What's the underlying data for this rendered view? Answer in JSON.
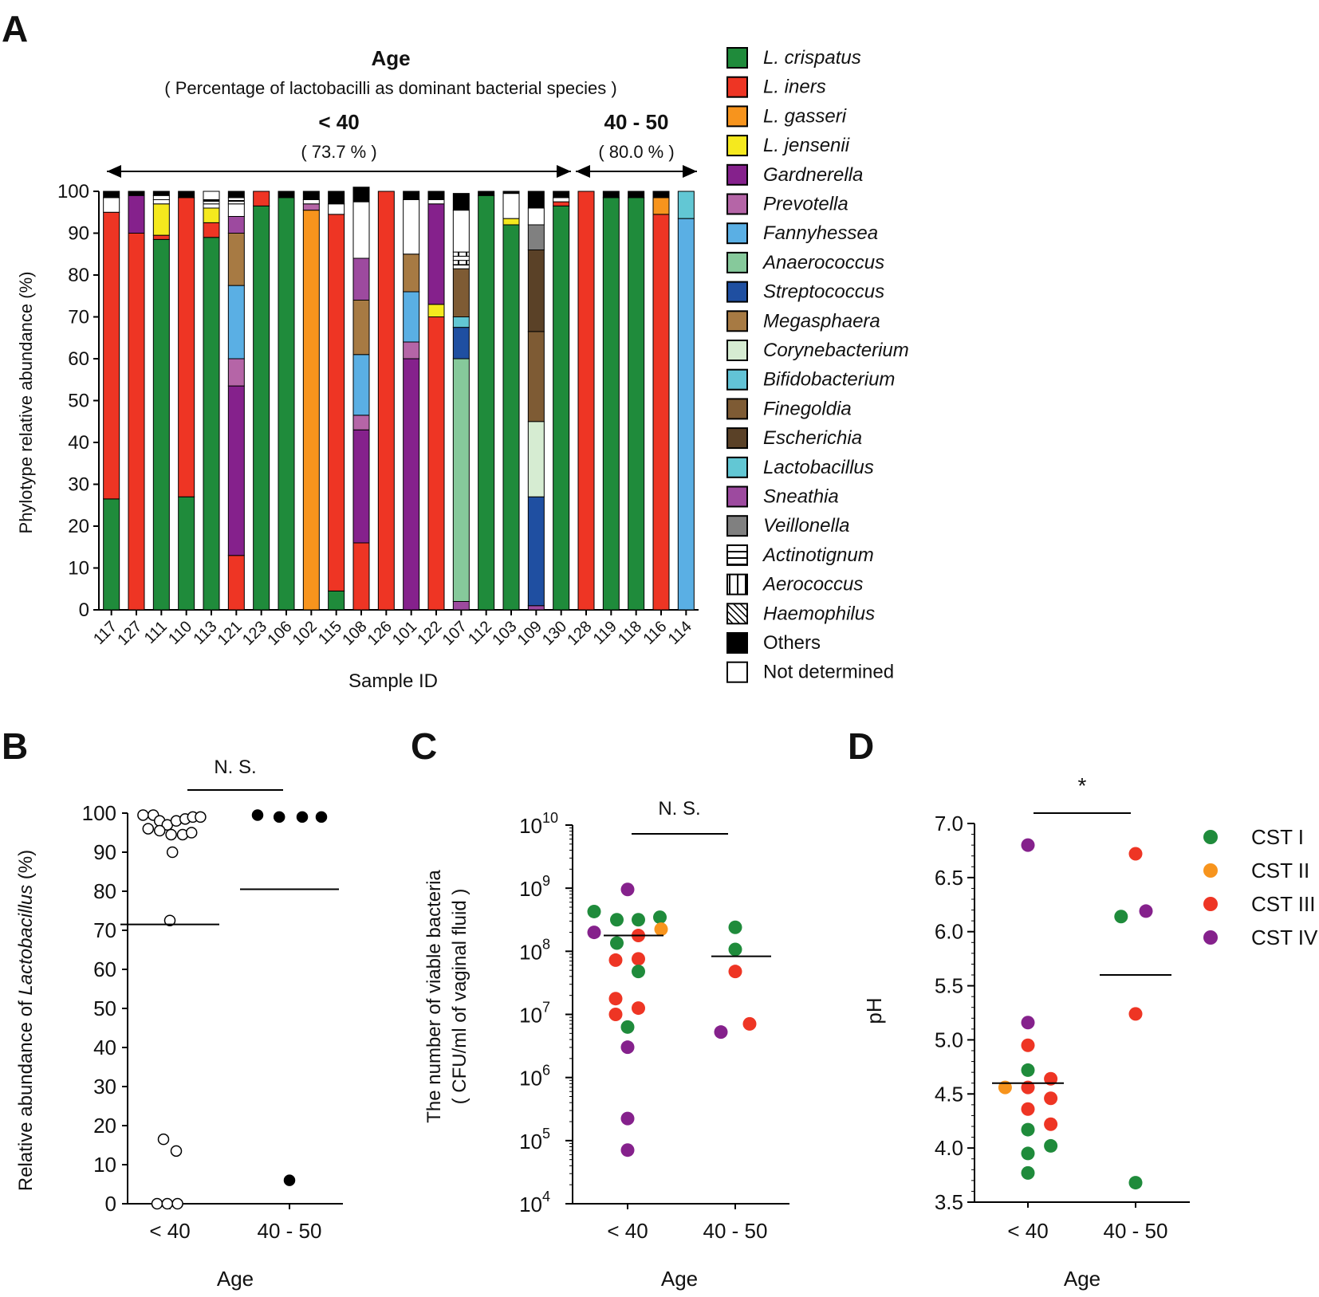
{
  "colors": {
    "L. crispatus": "#1f8b3b",
    "L. iners": "#ee3524",
    "L. gasseri": "#f7941d",
    "L. jensenii": "#f5e91e",
    "Gardnerella": "#85218c",
    "Prevotella": "#b565a7",
    "Fannyhessea": "#5aafe4",
    "Anaerococcus": "#86c99b",
    "Streptococcus": "#1f4fa1",
    "Megasphaera": "#a77a43",
    "Corynebacterium": "#d6ecd2",
    "Bifidobacterium": "#62c3d6",
    "Finegoldia": "#7e5b34",
    "Escherichia": "#5a4127",
    "Lactobacillus": "#62c7d4",
    "Sneathia": "#9d4a9f",
    "Veillonella": "#808080",
    "Actinotignum": "#ffffff",
    "Aerococcus": "#ffffff",
    "Haemophilus": "#ffffff",
    "Others": "#000000",
    "Not determined": "#ffffff",
    "CST I": "#1f8b3b",
    "CST II": "#f7941d",
    "CST III": "#ee3524",
    "CST IV": "#85218c"
  },
  "panels": {
    "A": {
      "label": "A",
      "title": "Age",
      "subtitle": "( Percentage of lactobacilli as dominant bacterial species )",
      "group1_label": "< 40",
      "group1_pct": "( 73.7 % )",
      "group2_label": "40 - 50",
      "group2_pct": "( 80.0 % )"
    },
    "B": {
      "label": "B",
      "sig": "N. S."
    },
    "C": {
      "label": "C",
      "sig": "N. S."
    },
    "D": {
      "label": "D",
      "sig": "*"
    }
  },
  "chart_data": [
    {
      "id": "A",
      "type": "bar",
      "stacked": true,
      "title": "Age",
      "xlabel": "Sample ID",
      "ylabel": "Phylotype relative abundance (%)",
      "ylim": [
        0,
        100
      ],
      "yticks": [
        0,
        10,
        20,
        30,
        40,
        50,
        60,
        70,
        80,
        90,
        100
      ],
      "categories": [
        "117",
        "127",
        "111",
        "110",
        "113",
        "121",
        "123",
        "106",
        "102",
        "115",
        "108",
        "126",
        "101",
        "122",
        "107",
        "112",
        "103",
        "109",
        "130",
        "128",
        "119",
        "118",
        "116",
        "114"
      ],
      "legend": [
        "L. crispatus",
        "L. iners",
        "L. gasseri",
        "L. jensenii",
        "Gardnerella",
        "Prevotella",
        "Fannyhessea",
        "Anaerococcus",
        "Streptococcus",
        "Megasphaera",
        "Corynebacterium",
        "Bifidobacterium",
        "Finegoldia",
        "Escherichia",
        "Lactobacillus",
        "Sneathia",
        "Veillonella",
        "Actinotignum",
        "Aerococcus",
        "Haemophilus",
        "Others",
        "Not determined"
      ],
      "legend_italic": [
        true,
        true,
        true,
        true,
        true,
        true,
        true,
        true,
        true,
        true,
        true,
        true,
        true,
        true,
        true,
        true,
        true,
        true,
        true,
        true,
        false,
        false
      ],
      "stacks": [
        [
          [
            "L. crispatus",
            26.5
          ],
          [
            "L. iners",
            68.5
          ],
          [
            "Not determined",
            3.5
          ],
          [
            "Others",
            1.5
          ]
        ],
        [
          [
            "L. iners",
            90
          ],
          [
            "Gardnerella",
            9
          ],
          [
            "Others",
            1
          ]
        ],
        [
          [
            "L. crispatus",
            88.5
          ],
          [
            "L. iners",
            1
          ],
          [
            "L. jensenii",
            7.5
          ],
          [
            "Not determined",
            1
          ],
          [
            "Actinotignum",
            1
          ],
          [
            "Others",
            1
          ]
        ],
        [
          [
            "L. crispatus",
            27
          ],
          [
            "L. iners",
            71.5
          ],
          [
            "Others",
            1.5
          ]
        ],
        [
          [
            "L. crispatus",
            89
          ],
          [
            "L. iners",
            3.5
          ],
          [
            "L. jensenii",
            3.5
          ],
          [
            "Not determined",
            1
          ],
          [
            "Actinotignum",
            1
          ],
          [
            "Not determined",
            2
          ]
        ],
        [
          [
            "L. iners",
            13
          ],
          [
            "Gardnerella",
            40.5
          ],
          [
            "Prevotella",
            6.5
          ],
          [
            "Fannyhessea",
            17.5
          ],
          [
            "Megasphaera",
            12.5
          ],
          [
            "Sneathia",
            4
          ],
          [
            "Not determined",
            3
          ],
          [
            "Actinotignum",
            1.5
          ],
          [
            "Others",
            1.5
          ]
        ],
        [
          [
            "L. crispatus",
            96.5
          ],
          [
            "L. iners",
            3.5
          ]
        ],
        [
          [
            "L. crispatus",
            98.5
          ],
          [
            "Others",
            1.5
          ]
        ],
        [
          [
            "L. gasseri",
            95.5
          ],
          [
            "Prevotella",
            1.5
          ],
          [
            "Not determined",
            1
          ],
          [
            "Others",
            2
          ]
        ],
        [
          [
            "L. crispatus",
            4.5
          ],
          [
            "L. iners",
            90
          ],
          [
            "Not determined",
            2.5
          ],
          [
            "Others",
            3
          ]
        ],
        [
          [
            "L. iners",
            16
          ],
          [
            "Gardnerella",
            27
          ],
          [
            "Prevotella",
            3.5
          ],
          [
            "Fannyhessea",
            14.5
          ],
          [
            "Megasphaera",
            13
          ],
          [
            "Sneathia",
            10
          ],
          [
            "Not determined",
            13.5
          ],
          [
            "Others",
            3.5
          ]
        ],
        [
          [
            "L. iners",
            100
          ]
        ],
        [
          [
            "Gardnerella",
            60
          ],
          [
            "Prevotella",
            4
          ],
          [
            "Fannyhessea",
            12
          ],
          [
            "Megasphaera",
            9
          ],
          [
            "Not determined",
            13
          ],
          [
            "Others",
            2
          ]
        ],
        [
          [
            "L. iners",
            70
          ],
          [
            "L. jensenii",
            3
          ],
          [
            "Gardnerella",
            24
          ],
          [
            "Not determined",
            1
          ],
          [
            "Others",
            2
          ]
        ],
        [
          [
            "Sneathia",
            2
          ],
          [
            "Anaerococcus",
            58
          ],
          [
            "Streptococcus",
            7.5
          ],
          [
            "Lactobacillus",
            2.5
          ],
          [
            "Finegoldia",
            11.5
          ],
          [
            "Actinotignum",
            1
          ],
          [
            "Aerococcus",
            1
          ],
          [
            "Not determined",
            1
          ],
          [
            "Aerococcus",
            1
          ],
          [
            "Not determined",
            10
          ],
          [
            "Others",
            4
          ]
        ],
        [
          [
            "L. crispatus",
            99
          ],
          [
            "Others",
            1
          ]
        ],
        [
          [
            "L. crispatus",
            92
          ],
          [
            "L. jensenii",
            1.5
          ],
          [
            "Not determined",
            6
          ],
          [
            "Others",
            0.5
          ]
        ],
        [
          [
            "Sneathia",
            1
          ],
          [
            "Streptococcus",
            26
          ],
          [
            "Corynebacterium",
            18
          ],
          [
            "Finegoldia",
            21.5
          ],
          [
            "Escherichia",
            19.5
          ],
          [
            "Veillonella",
            6
          ],
          [
            "Not determined",
            4
          ],
          [
            "Others",
            4
          ]
        ],
        [
          [
            "L. crispatus",
            96.5
          ],
          [
            "L. iners",
            1
          ],
          [
            "Not determined",
            1
          ],
          [
            "Others",
            1.5
          ]
        ],
        [
          [
            "L. iners",
            100
          ]
        ],
        [
          [
            "L. crispatus",
            98.5
          ],
          [
            "Others",
            1.5
          ]
        ],
        [
          [
            "L. crispatus",
            98.5
          ],
          [
            "Others",
            1.5
          ]
        ],
        [
          [
            "L. iners",
            94.5
          ],
          [
            "L. gasseri",
            4
          ],
          [
            "Others",
            1.5
          ]
        ],
        [
          [
            "Fannyhessea",
            93.5
          ],
          [
            "Lactobacillus",
            6.5
          ]
        ]
      ]
    },
    {
      "id": "B",
      "type": "scatter",
      "xlabel": "Age",
      "ylabel_prefix": "Relative abundance of ",
      "ylabel_italic": "Lactobacillus",
      "ylabel_suffix": " (%)",
      "ylim": [
        0,
        100
      ],
      "yticks": [
        0,
        10,
        20,
        30,
        40,
        50,
        60,
        70,
        80,
        90,
        100
      ],
      "categories": [
        "< 40",
        "40 - 50"
      ],
      "groups": [
        {
          "name": "< 40",
          "filled": false,
          "points": [
            [
              -0.21,
              99.5
            ],
            [
              -0.13,
              99.5
            ],
            [
              -0.08,
              98
            ],
            [
              -0.02,
              97
            ],
            [
              0.05,
              98
            ],
            [
              0.12,
              98.5
            ],
            [
              0.18,
              99
            ],
            [
              0.24,
              99
            ],
            [
              -0.17,
              96
            ],
            [
              -0.08,
              95.5
            ],
            [
              0.01,
              94.5
            ],
            [
              0.1,
              94.5
            ],
            [
              0.17,
              95
            ],
            [
              0.02,
              90
            ],
            [
              0.0,
              72.5
            ],
            [
              -0.05,
              16.5
            ],
            [
              0.05,
              13.5
            ],
            [
              -0.1,
              0
            ],
            [
              -0.02,
              0
            ],
            [
              0.06,
              0
            ]
          ],
          "mean": 71.5
        },
        {
          "name": "40 - 50",
          "filled": true,
          "points": [
            [
              -0.25,
              99.5
            ],
            [
              -0.08,
              99
            ],
            [
              0.1,
              99
            ],
            [
              0.25,
              99
            ],
            [
              0.0,
              6
            ]
          ],
          "mean": 80.5
        }
      ]
    },
    {
      "id": "C",
      "type": "scatter",
      "yscale": "log",
      "xlabel": "Age",
      "ylabel_line1": "The number of viable bacteria",
      "ylabel_line2": "( CFU/ml of vaginal fluid )",
      "ylim_exp": [
        4,
        10
      ],
      "tick_base": "10",
      "tick_exponents": [
        "4",
        "5",
        "6",
        "7",
        "8",
        "9",
        "10"
      ],
      "categories": [
        "< 40",
        "40 - 50"
      ],
      "groups": [
        {
          "name": "< 40",
          "points": [
            [
              -0.28,
              8.63,
              "CST I"
            ],
            [
              -0.09,
              8.5,
              "CST I"
            ],
            [
              0.09,
              8.5,
              "CST I"
            ],
            [
              0.27,
              8.54,
              "CST I"
            ],
            [
              -0.28,
              8.3,
              "CST IV"
            ],
            [
              -0.09,
              8.13,
              "CST I"
            ],
            [
              0.09,
              8.25,
              "CST III"
            ],
            [
              0.28,
              8.35,
              "CST II"
            ],
            [
              -0.1,
              7.86,
              "CST III"
            ],
            [
              0.09,
              7.88,
              "CST III"
            ],
            [
              0.09,
              7.68,
              "CST I"
            ],
            [
              -0.1,
              7.25,
              "CST III"
            ],
            [
              0.09,
              7.1,
              "CST III"
            ],
            [
              -0.1,
              7.0,
              "CST III"
            ],
            [
              0.0,
              6.8,
              "CST I"
            ],
            [
              0.0,
              6.48,
              "CST IV"
            ],
            [
              0.0,
              5.35,
              "CST IV"
            ],
            [
              0.0,
              4.85,
              "CST IV"
            ],
            [
              0.0,
              8.98,
              "CST IV"
            ]
          ],
          "mean_exp": 8.25
        },
        {
          "name": "40 - 50",
          "points": [
            [
              0.0,
              8.38,
              "CST I"
            ],
            [
              0.0,
              8.03,
              "CST I"
            ],
            [
              0.0,
              7.68,
              "CST III"
            ],
            [
              -0.12,
              6.72,
              "CST IV"
            ],
            [
              0.12,
              6.85,
              "CST III"
            ]
          ],
          "mean_exp": 7.92
        }
      ]
    },
    {
      "id": "D",
      "type": "scatter",
      "xlabel": "Age",
      "ylabel": "pH",
      "ylim": [
        3.5,
        7.0
      ],
      "yticks": [
        "3.5",
        "4.0",
        "4.5",
        "5.0",
        "5.5",
        "6.0",
        "6.5",
        "7.0"
      ],
      "categories": [
        "< 40",
        "40 - 50"
      ],
      "legend": [
        "CST I",
        "CST II",
        "CST III",
        "CST IV"
      ],
      "groups": [
        {
          "name": "< 40",
          "points": [
            [
              0.0,
              6.8,
              "CST IV"
            ],
            [
              0.0,
              5.16,
              "CST IV"
            ],
            [
              0.0,
              4.95,
              "CST III"
            ],
            [
              0.0,
              4.72,
              "CST I"
            ],
            [
              -0.22,
              4.56,
              "CST II"
            ],
            [
              0.0,
              4.56,
              "CST III"
            ],
            [
              0.22,
              4.64,
              "CST III"
            ],
            [
              0.0,
              4.36,
              "CST III"
            ],
            [
              0.22,
              4.46,
              "CST III"
            ],
            [
              0.0,
              4.17,
              "CST I"
            ],
            [
              0.22,
              4.22,
              "CST III"
            ],
            [
              0.0,
              3.95,
              "CST I"
            ],
            [
              0.22,
              4.02,
              "CST I"
            ],
            [
              0.0,
              3.77,
              "CST I"
            ]
          ],
          "mean": 4.6
        },
        {
          "name": "40 - 50",
          "points": [
            [
              0.0,
              6.72,
              "CST III"
            ],
            [
              -0.14,
              6.14,
              "CST I"
            ],
            [
              0.1,
              6.19,
              "CST IV"
            ],
            [
              0.0,
              5.24,
              "CST III"
            ],
            [
              0.0,
              3.68,
              "CST I"
            ]
          ],
          "mean": 5.6
        }
      ]
    }
  ]
}
